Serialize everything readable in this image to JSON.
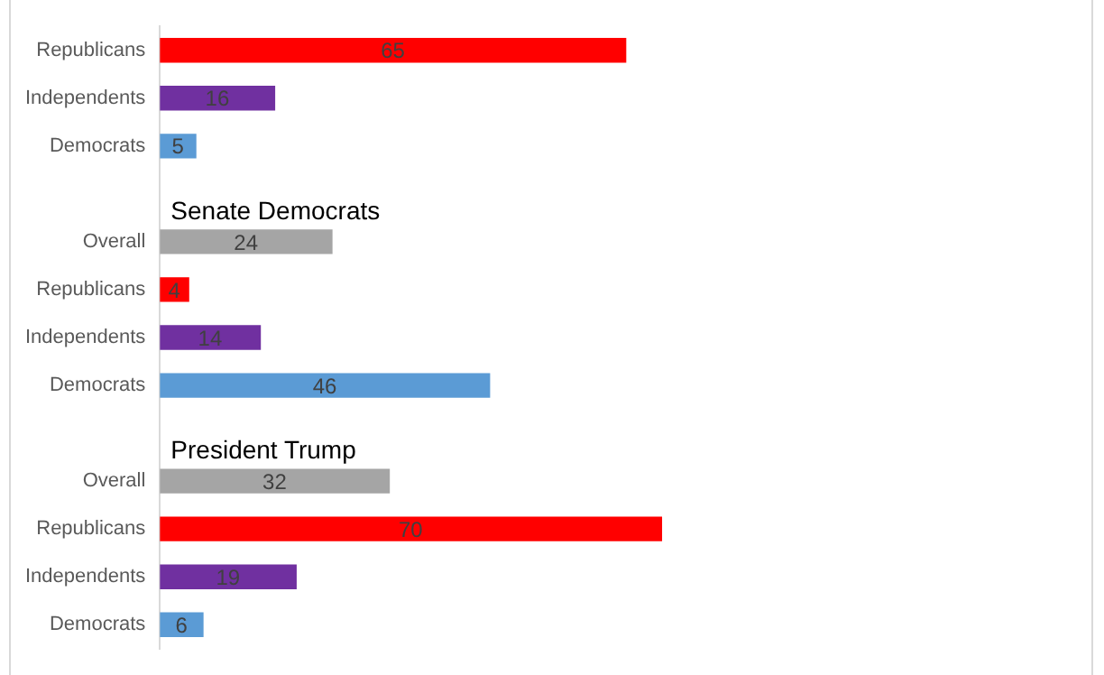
{
  "chart_data": {
    "type": "bar",
    "orientation": "horizontal",
    "categories": [
      "Republicans",
      "Independents",
      "Democrats",
      null,
      "Overall",
      "Republicans",
      "Independents",
      "Democrats",
      null,
      "Overall",
      "Republicans",
      "Independents",
      "Democrats"
    ],
    "values": [
      65,
      16,
      5,
      null,
      24,
      4,
      14,
      46,
      null,
      32,
      70,
      19,
      6
    ],
    "colors": [
      "#ff0000",
      "#7030a0",
      "#5b9bd5",
      null,
      "#a5a5a5",
      "#ff0000",
      "#7030a0",
      "#5b9bd5",
      null,
      "#a5a5a5",
      "#ff0000",
      "#7030a0",
      "#5b9bd5"
    ],
    "annotations": [
      "Senate Democrats",
      "President Trump"
    ],
    "xlim": [
      0,
      130
    ],
    "tick_labels": "y",
    "data_labels": true,
    "grid": false,
    "legend": false
  }
}
